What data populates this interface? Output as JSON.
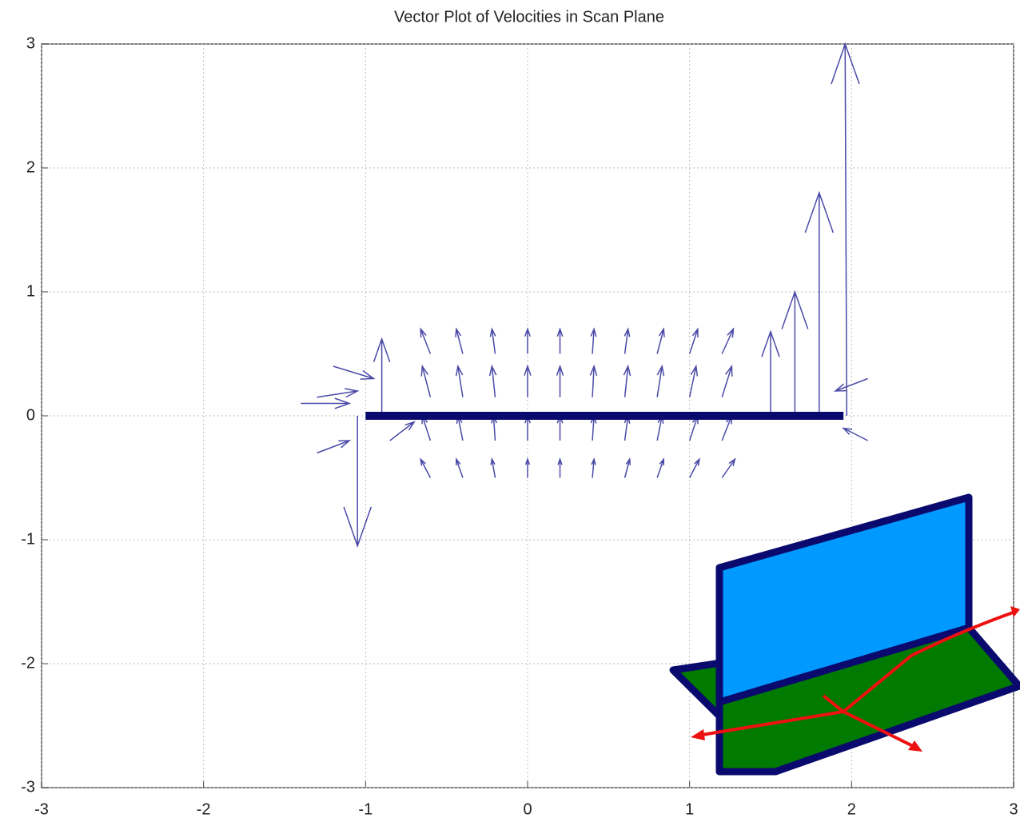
{
  "chart_data": {
    "type": "quiver",
    "title": "Vector Plot of Velocities in Scan Plane",
    "xlim": [
      -3,
      3
    ],
    "ylim": [
      -3,
      3
    ],
    "xticks": [
      -3,
      -2,
      -1,
      0,
      1,
      2,
      3
    ],
    "yticks": [
      -3,
      -2,
      -1,
      0,
      1,
      2,
      3
    ],
    "grid": true,
    "color": "#4a4aa8",
    "plate": {
      "x": [
        -1,
        1.95
      ],
      "y": 0,
      "color": "#0a0a6e"
    },
    "x": [
      -0.6,
      -0.4,
      -0.2,
      0,
      0.2,
      0.4,
      0.6,
      0.8,
      1.0,
      1.2,
      -0.6,
      -0.4,
      -0.2,
      0,
      0.2,
      0.4,
      0.6,
      0.8,
      1.0,
      1.2,
      -0.6,
      -0.4,
      -0.2,
      0,
      0.2,
      0.4,
      0.6,
      0.8,
      1.0,
      1.2,
      -0.6,
      -0.4,
      -0.2,
      0,
      0.2,
      0.4,
      0.6,
      0.8,
      1.0,
      1.2,
      -0.9,
      -1.05,
      1.5,
      1.65,
      1.8,
      1.97,
      -1.3,
      -1.2,
      -1.3,
      -0.85,
      -1.4,
      2.1,
      2.1
    ],
    "y": [
      0.15,
      0.15,
      0.15,
      0.15,
      0.15,
      0.15,
      0.15,
      0.15,
      0.15,
      0.15,
      0.5,
      0.5,
      0.5,
      0.5,
      0.5,
      0.5,
      0.5,
      0.5,
      0.5,
      0.5,
      -0.2,
      -0.2,
      -0.2,
      -0.2,
      -0.2,
      -0.2,
      -0.2,
      -0.2,
      -0.2,
      -0.2,
      -0.5,
      -0.5,
      -0.5,
      -0.5,
      -0.5,
      -0.5,
      -0.5,
      -0.5,
      -0.5,
      -0.5,
      0,
      0,
      0,
      0,
      0,
      0,
      0.15,
      0.4,
      -0.3,
      -0.2,
      0.1,
      0.3,
      -0.2
    ],
    "u": [
      -0.05,
      -0.03,
      -0.02,
      0,
      0,
      0.01,
      0.02,
      0.03,
      0.04,
      0.06,
      -0.06,
      -0.04,
      -0.02,
      0,
      0,
      0.01,
      0.02,
      0.04,
      0.05,
      0.07,
      -0.05,
      -0.03,
      -0.01,
      0,
      0,
      0.01,
      0.02,
      0.03,
      0.05,
      0.06,
      -0.06,
      -0.04,
      -0.02,
      0,
      0,
      0.01,
      0.03,
      0.04,
      0.06,
      0.08,
      0,
      0,
      0,
      0,
      0,
      -0.01,
      0.25,
      0.25,
      0.2,
      0.15,
      0.3,
      -0.2,
      -0.15
    ],
    "v": [
      0.25,
      0.25,
      0.25,
      0.25,
      0.25,
      0.25,
      0.25,
      0.25,
      0.25,
      0.25,
      0.2,
      0.2,
      0.2,
      0.2,
      0.2,
      0.2,
      0.2,
      0.2,
      0.2,
      0.2,
      0.2,
      0.2,
      0.2,
      0.2,
      0.2,
      0.2,
      0.2,
      0.2,
      0.2,
      0.2,
      0.15,
      0.15,
      0.15,
      0.15,
      0.15,
      0.15,
      0.15,
      0.15,
      0.15,
      0.15,
      0.62,
      -1.05,
      0.68,
      1.0,
      1.8,
      3.0,
      0.05,
      -0.1,
      0.1,
      0.15,
      0,
      -0.1,
      0.1
    ]
  }
}
